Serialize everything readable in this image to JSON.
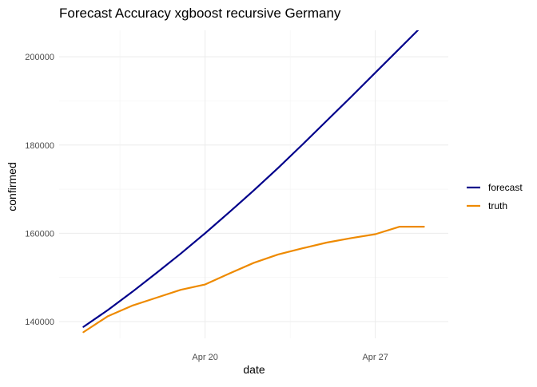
{
  "chart_data": {
    "type": "line",
    "title": "Forecast Accuracy xgboost recursive Germany",
    "xlabel": "date",
    "ylabel": "confirmed",
    "x": [
      "2020-04-15",
      "2020-04-16",
      "2020-04-17",
      "2020-04-18",
      "2020-04-19",
      "2020-04-20",
      "2020-04-21",
      "2020-04-22",
      "2020-04-23",
      "2020-04-24",
      "2020-04-25",
      "2020-04-26",
      "2020-04-27",
      "2020-04-28",
      "2020-04-29"
    ],
    "x_ticks": [
      {
        "date": "2020-04-20",
        "label": "Apr 20"
      },
      {
        "date": "2020-04-27",
        "label": "Apr 27"
      }
    ],
    "x_range": [
      "2020-04-14",
      "2020-04-30"
    ],
    "y_ticks": [
      140000,
      160000,
      180000,
      200000
    ],
    "y_tick_labels": [
      "140000",
      "160000",
      "180000",
      "200000"
    ],
    "ylim": [
      136200,
      206000
    ],
    "grid": true,
    "legend_position": "right",
    "series": [
      {
        "name": "forecast",
        "color": "#00008b",
        "values": [
          138800,
          142600,
          146700,
          151000,
          155400,
          160000,
          164800,
          169700,
          174800,
          180100,
          185500,
          190900,
          196400,
          201900,
          207400
        ]
      },
      {
        "name": "truth",
        "color": "#ee8a00",
        "values": [
          137600,
          141200,
          143600,
          145400,
          147200,
          148400,
          150900,
          153300,
          155200,
          156600,
          157900,
          158900,
          159800,
          161500,
          161500
        ]
      }
    ]
  }
}
